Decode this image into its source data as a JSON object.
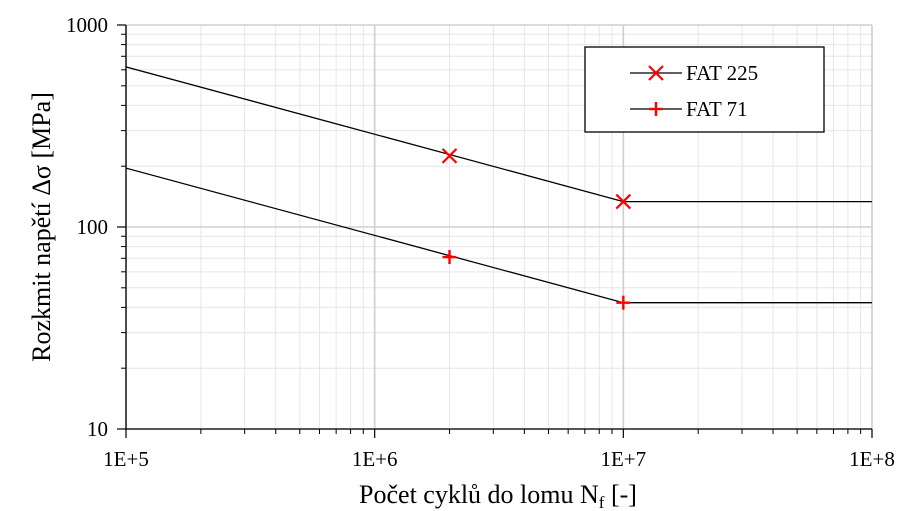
{
  "chart_data": {
    "type": "line",
    "title": "",
    "xlabel": "Počet cyklů do lomu N",
    "xlabel_sub": "f",
    "xlabel_suffix": " [-]",
    "ylabel": "Rozkmit napětí Δσ [MPa]",
    "xscale": "log",
    "yscale": "log",
    "xlim": [
      100000,
      100000000
    ],
    "ylim": [
      10,
      1000
    ],
    "x_ticks": [
      {
        "value": 100000,
        "label": "1E+5"
      },
      {
        "value": 1000000,
        "label": "1E+6"
      },
      {
        "value": 10000000,
        "label": "1E+7"
      },
      {
        "value": 100000000,
        "label": "1E+8"
      }
    ],
    "y_ticks": [
      {
        "value": 10,
        "label": "10"
      },
      {
        "value": 100,
        "label": "100"
      },
      {
        "value": 1000,
        "label": "1000"
      }
    ],
    "grid": true,
    "legend_position": "top-right",
    "series": [
      {
        "name": "FAT 225",
        "line_color": "#000000",
        "marker": "x",
        "marker_color": "#ff0000",
        "line": [
          [
            100000,
            620.1
          ],
          [
            10000000,
            133.6
          ],
          [
            100000000,
            133.6
          ]
        ],
        "markers": [
          [
            2000000,
            225
          ],
          [
            10000000,
            133.6
          ]
        ]
      },
      {
        "name": "FAT 71",
        "line_color": "#000000",
        "marker": "+",
        "marker_color": "#ff0000",
        "line": [
          [
            100000,
            195.7
          ],
          [
            10000000,
            42.2
          ],
          [
            100000000,
            42.2
          ]
        ],
        "markers": [
          [
            2000000,
            71
          ],
          [
            10000000,
            42.2
          ]
        ]
      }
    ]
  }
}
